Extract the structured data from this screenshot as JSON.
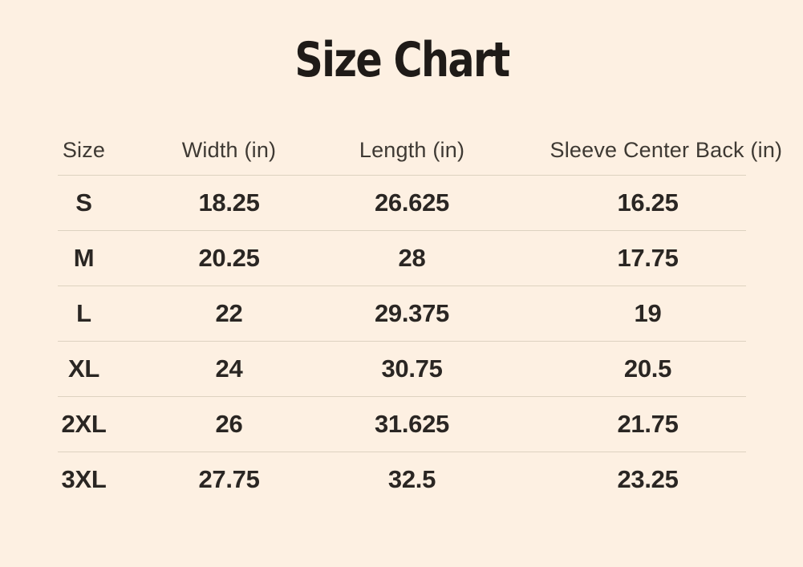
{
  "title": "Size Chart",
  "table": {
    "headers": [
      "Size",
      "Width (in)",
      "Length (in)",
      "Sleeve Center Back (in)"
    ],
    "rows": [
      [
        "S",
        "18.25",
        "26.625",
        "16.25"
      ],
      [
        "M",
        "20.25",
        "28",
        "17.75"
      ],
      [
        "L",
        "22",
        "29.375",
        "19"
      ],
      [
        "XL",
        "24",
        "30.75",
        "20.5"
      ],
      [
        "2XL",
        "26",
        "31.625",
        "21.75"
      ],
      [
        "3XL",
        "27.75",
        "32.5",
        "23.25"
      ]
    ]
  },
  "colors": {
    "background": "#fdf0e2",
    "title_text": "#1f1b18",
    "header_text": "#3e3933",
    "cell_text": "#2a2623",
    "divider": "#ddd2c0"
  },
  "chart_data": {
    "type": "table",
    "title": "Size Chart",
    "columns": [
      "Size",
      "Width (in)",
      "Length (in)",
      "Sleeve Center Back (in)"
    ],
    "rows": [
      [
        "S",
        18.25,
        26.625,
        16.25
      ],
      [
        "M",
        20.25,
        28,
        17.75
      ],
      [
        "L",
        22,
        29.375,
        19
      ],
      [
        "XL",
        24,
        30.75,
        20.5
      ],
      [
        "2XL",
        26,
        31.625,
        21.75
      ],
      [
        "3XL",
        27.75,
        32.5,
        23.25
      ]
    ],
    "layout": {
      "title_position": "top-center",
      "row_dividers": true,
      "outer_border": false,
      "header_weight": "regular",
      "cell_weight": "bold"
    }
  }
}
